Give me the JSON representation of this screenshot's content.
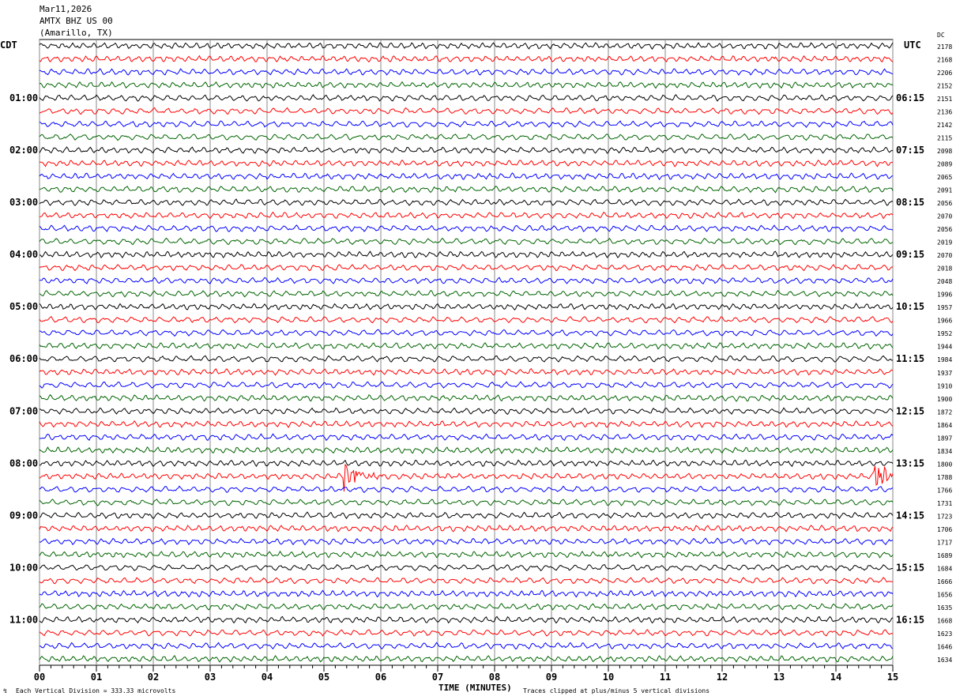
{
  "header": {
    "date": "Mar11,2026",
    "station": "AMTX BHZ US 00",
    "location": "(Amarillo, TX)"
  },
  "left_tz": "CDT",
  "right_tz": "UTC",
  "dc_label": "DC",
  "left_times": [
    "01:00",
    "02:00",
    "03:00",
    "04:00",
    "05:00",
    "06:00",
    "07:00",
    "08:00",
    "09:00",
    "10:00",
    "11:00"
  ],
  "right_times": [
    "06:15",
    "07:15",
    "08:15",
    "09:15",
    "10:15",
    "11:15",
    "12:15",
    "13:15",
    "14:15",
    "15:15",
    "16:15"
  ],
  "footer": {
    "scale": "Each Vertical Division =  333.33 microvolts",
    "xlabel": "TIME (MINUTES)",
    "clip": "Traces clipped at plus/minus 5 vertical divisions"
  },
  "colors": [
    "#000000",
    "#ff0000",
    "#0000ff",
    "#006400"
  ],
  "chart_data": {
    "type": "line",
    "title": "AMTX BHZ US 00 helicorder",
    "xlabel": "TIME (MINUTES)",
    "xlim": [
      0,
      15
    ],
    "x_ticks": [
      "00",
      "01",
      "02",
      "03",
      "04",
      "05",
      "06",
      "07",
      "08",
      "09",
      "10",
      "11",
      "12",
      "13",
      "14",
      "15"
    ],
    "trace_count": 48,
    "dc_offsets": [
      2178,
      2168,
      2206,
      2152,
      2151,
      2136,
      2142,
      2115,
      2098,
      2089,
      2065,
      2091,
      2056,
      2070,
      2056,
      2019,
      2070,
      2018,
      2048,
      1996,
      1957,
      1966,
      1952,
      1944,
      1984,
      1937,
      1910,
      1900,
      1872,
      1864,
      1897,
      1834,
      1800,
      1788,
      1766,
      1731,
      1723,
      1706,
      1717,
      1689,
      1684,
      1666,
      1656,
      1635,
      1668,
      1623,
      1646,
      1634
    ],
    "events": [
      {
        "trace": 33,
        "minute": 5.4,
        "amplitude_divisions": 2.2
      },
      {
        "trace": 33,
        "minute": 14.7,
        "amplitude_divisions": 2.2
      }
    ]
  }
}
